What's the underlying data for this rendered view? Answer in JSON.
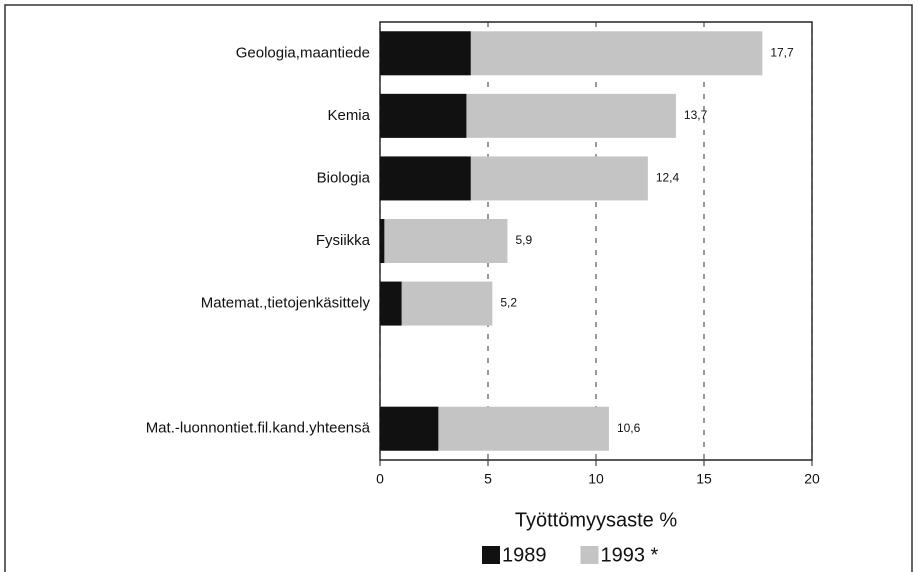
{
  "chart_data": {
    "type": "bar",
    "orientation": "horizontal",
    "categories": [
      "Geologia,maantiede",
      "Kemia",
      "Biologia",
      "Fysiikka",
      "Matemat.,tietojenkäsittely",
      null,
      "Mat.-luonnontiet.fil.kand.yhteensä"
    ],
    "series": [
      {
        "name": "1989",
        "color": "#111111",
        "values": [
          4.2,
          4.0,
          4.2,
          0.2,
          1.0,
          null,
          2.7
        ]
      },
      {
        "name": "1993 *",
        "color": "#c4c4c4",
        "values": [
          17.7,
          13.7,
          12.4,
          5.9,
          5.2,
          null,
          10.6
        ],
        "value_labels": [
          "17,7",
          "13,7",
          "12,4",
          "5,9",
          "5,2",
          null,
          "10,6"
        ]
      }
    ],
    "x_label": "Työttömyysaste %",
    "xlim": [
      0,
      20
    ],
    "xticks": [
      0,
      5,
      10,
      15,
      20
    ],
    "grid": true
  }
}
